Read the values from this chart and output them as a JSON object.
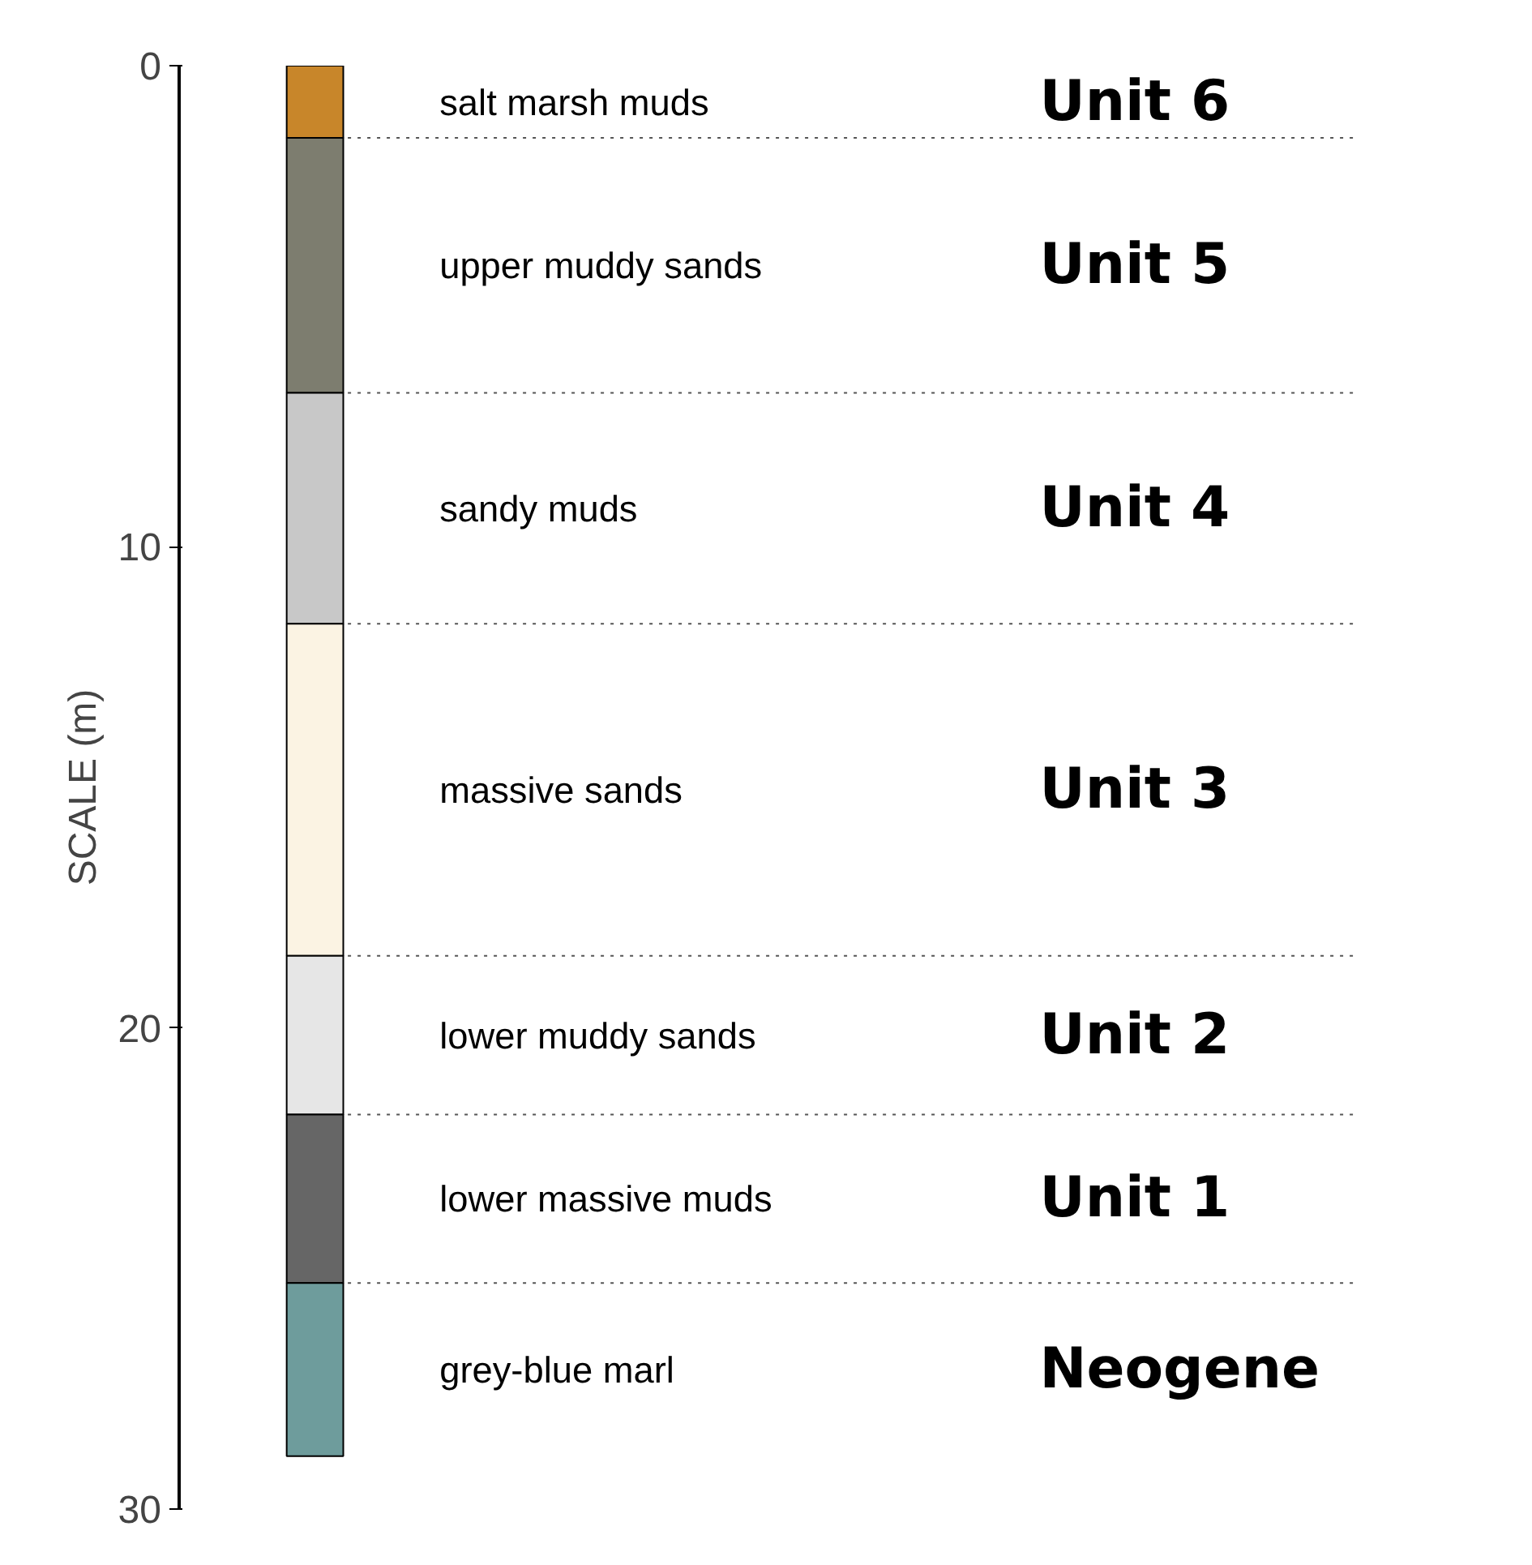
{
  "chart_data": {
    "type": "bar",
    "stacked": true,
    "ylabel": "SCALE (m)",
    "categories": [
      null
    ],
    "ylim": [
      30,
      0
    ],
    "yticks": [
      0,
      10,
      20,
      30
    ],
    "grid": false,
    "tick_labels": "y",
    "series": [
      {
        "name": "salt marsh muds",
        "color": "#c8862a",
        "values": [
          1.5
        ]
      },
      {
        "name": "upper muddy sands",
        "color": "#7d7d6f",
        "values": [
          5.3
        ]
      },
      {
        "name": "sandy muds",
        "color": "#c8c8c8",
        "values": [
          4.8
        ]
      },
      {
        "name": "massive sands",
        "color": "#fbf3e3",
        "values": [
          6.9
        ]
      },
      {
        "name": "lower muddy sands",
        "color": "#e6e6e6",
        "values": [
          3.3
        ]
      },
      {
        "name": "lower massive muds",
        "color": "#666666",
        "values": [
          3.5
        ]
      },
      {
        "name": "grey-blue marl",
        "color": "#6e9c9c",
        "values": [
          3.6
        ]
      }
    ],
    "annotations": [
      "Unit 6",
      "Unit 5",
      "Unit 4",
      "Unit 3",
      "Unit 2",
      "Unit 1",
      "Neogene"
    ]
  }
}
